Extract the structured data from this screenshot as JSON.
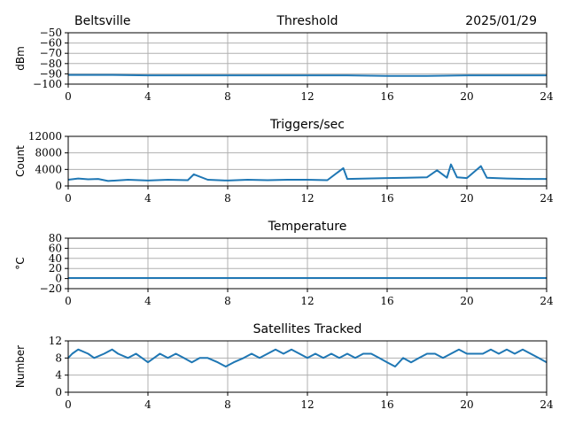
{
  "header": {
    "location": "Beltsville",
    "date": "2025/01/29"
  },
  "chart_data": [
    {
      "type": "line",
      "title": "Threshold",
      "ylabel": "dBm",
      "xlabel": "",
      "xlim": [
        0,
        24
      ],
      "ylim": [
        -100,
        -50
      ],
      "xticks": [
        0,
        4,
        8,
        12,
        16,
        20,
        24
      ],
      "yticks": [
        -100,
        -90,
        -80,
        -70,
        -60,
        -50
      ],
      "ytick_labels": [
        "−100",
        "−90",
        "−80",
        "−70",
        "−60",
        "−50"
      ],
      "grid": true,
      "series": [
        {
          "x": [
            0,
            2,
            4,
            6,
            8,
            10,
            12,
            14,
            16,
            18,
            20,
            22,
            24
          ],
          "values": [
            -91,
            -91,
            -91.5,
            -91.5,
            -91.5,
            -91.5,
            -91.5,
            -91.5,
            -92,
            -92,
            -91.5,
            -91.5,
            -91.5
          ]
        }
      ]
    },
    {
      "type": "line",
      "title": "Triggers/sec",
      "ylabel": "Count",
      "xlabel": "",
      "xlim": [
        0,
        24
      ],
      "ylim": [
        0,
        12000
      ],
      "xticks": [
        0,
        4,
        8,
        12,
        16,
        20,
        24
      ],
      "yticks": [
        0,
        4000,
        8000,
        12000
      ],
      "ytick_labels": [
        "0",
        "4000",
        "8000",
        "12000"
      ],
      "grid": true,
      "series": [
        {
          "x": [
            0,
            0.5,
            1,
            1.5,
            2,
            3,
            4,
            5,
            6,
            6.3,
            7,
            8,
            9,
            10,
            11,
            12,
            13,
            13.8,
            14,
            15,
            16,
            17,
            18,
            18.5,
            19,
            19.2,
            19.5,
            20,
            20.7,
            21,
            22,
            23,
            24
          ],
          "values": [
            1500,
            1800,
            1600,
            1700,
            1200,
            1500,
            1300,
            1500,
            1400,
            2800,
            1500,
            1300,
            1500,
            1400,
            1500,
            1500,
            1400,
            4300,
            1700,
            1800,
            1900,
            2000,
            2100,
            3800,
            2000,
            5200,
            2100,
            1900,
            4800,
            2000,
            1800,
            1700,
            1700
          ]
        }
      ]
    },
    {
      "type": "line",
      "title": "Temperature",
      "ylabel": "°C",
      "xlabel": "",
      "xlim": [
        0,
        24
      ],
      "ylim": [
        -20,
        80
      ],
      "xticks": [
        0,
        4,
        8,
        12,
        16,
        20,
        24
      ],
      "yticks": [
        -20,
        0,
        20,
        40,
        60,
        80
      ],
      "ytick_labels": [
        "−20",
        "0",
        "20",
        "40",
        "60",
        "80"
      ],
      "grid": true,
      "series": [
        {
          "x": [
            0,
            24
          ],
          "values": [
            1,
            1
          ]
        }
      ]
    },
    {
      "type": "line",
      "title": "Satellites Tracked",
      "ylabel": "Number",
      "xlabel": "",
      "xlim": [
        0,
        24
      ],
      "ylim": [
        0,
        12
      ],
      "xticks": [
        0,
        4,
        8,
        12,
        16,
        20,
        24
      ],
      "yticks": [
        0,
        4,
        8,
        12
      ],
      "ytick_labels": [
        "0",
        "4",
        "8",
        "12"
      ],
      "grid": true,
      "series": [
        {
          "x": [
            0,
            0.2,
            0.5,
            1.0,
            1.3,
            1.8,
            2.2,
            2.5,
            3.0,
            3.4,
            3.7,
            4.0,
            4.3,
            4.6,
            5.0,
            5.4,
            5.8,
            6.2,
            6.6,
            7.0,
            7.5,
            7.9,
            8.3,
            8.8,
            9.2,
            9.6,
            10.0,
            10.4,
            10.8,
            11.2,
            11.6,
            12.0,
            12.4,
            12.8,
            13.2,
            13.6,
            14.0,
            14.4,
            14.8,
            15.2,
            15.6,
            16.0,
            16.4,
            16.8,
            17.2,
            17.6,
            18.0,
            18.4,
            18.8,
            19.2,
            19.6,
            20.0,
            20.4,
            20.8,
            21.2,
            21.6,
            22.0,
            22.4,
            22.8,
            23.2,
            23.6,
            24.0
          ],
          "values": [
            8,
            9,
            10,
            9,
            8,
            9,
            10,
            9,
            8,
            9,
            8,
            7,
            8,
            9,
            8,
            9,
            8,
            7,
            8,
            8,
            7,
            6,
            7,
            8,
            9,
            8,
            9,
            10,
            9,
            10,
            9,
            8,
            9,
            8,
            9,
            8,
            9,
            8,
            9,
            9,
            8,
            7,
            6,
            8,
            7,
            8,
            9,
            9,
            8,
            9,
            10,
            9,
            9,
            9,
            10,
            9,
            10,
            9,
            10,
            9,
            8,
            7
          ]
        }
      ]
    }
  ]
}
